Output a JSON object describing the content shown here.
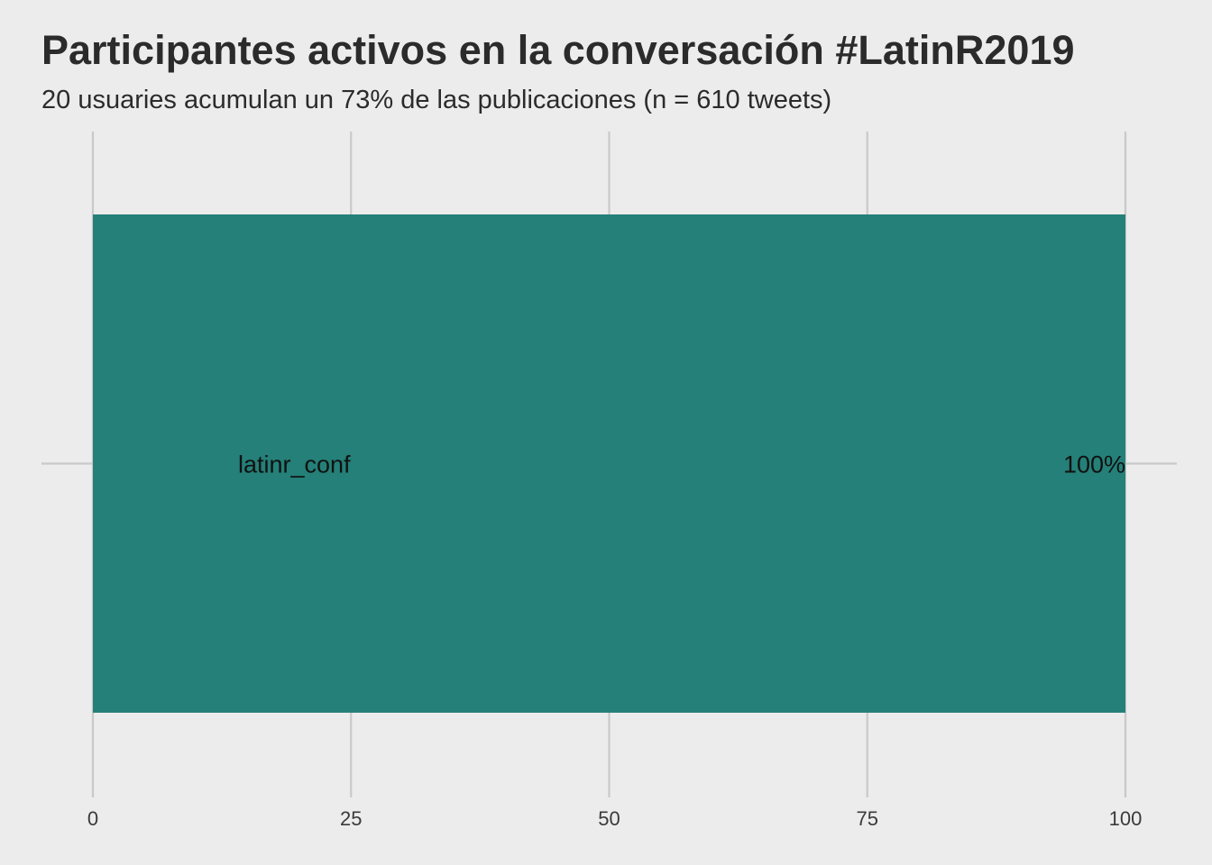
{
  "title": "Participantes activos en la conversación #LatinR2019",
  "subtitle": "20 usuaries acumulan un 73% de las publicaciones (n = 610 tweets)",
  "colors": {
    "background": "#ececec",
    "bar": "#248078",
    "grid": "#c9c9c9",
    "text": "#2b2b2b"
  },
  "chart_data": {
    "type": "bar",
    "orientation": "horizontal",
    "title": "Participantes activos en la conversación #LatinR2019",
    "subtitle": "20 usuaries acumulan un 73% de las publicaciones (n = 610 tweets)",
    "categories": [
      "latinr_conf"
    ],
    "values": [
      100
    ],
    "value_labels": [
      "100%"
    ],
    "xlabel": "",
    "ylabel": "",
    "xlim": [
      0,
      100
    ],
    "x_ticks": [
      0,
      25,
      50,
      75,
      100
    ],
    "x_tick_labels": [
      "0",
      "25",
      "50",
      "75",
      "100"
    ],
    "grid": true,
    "legend": "none"
  }
}
